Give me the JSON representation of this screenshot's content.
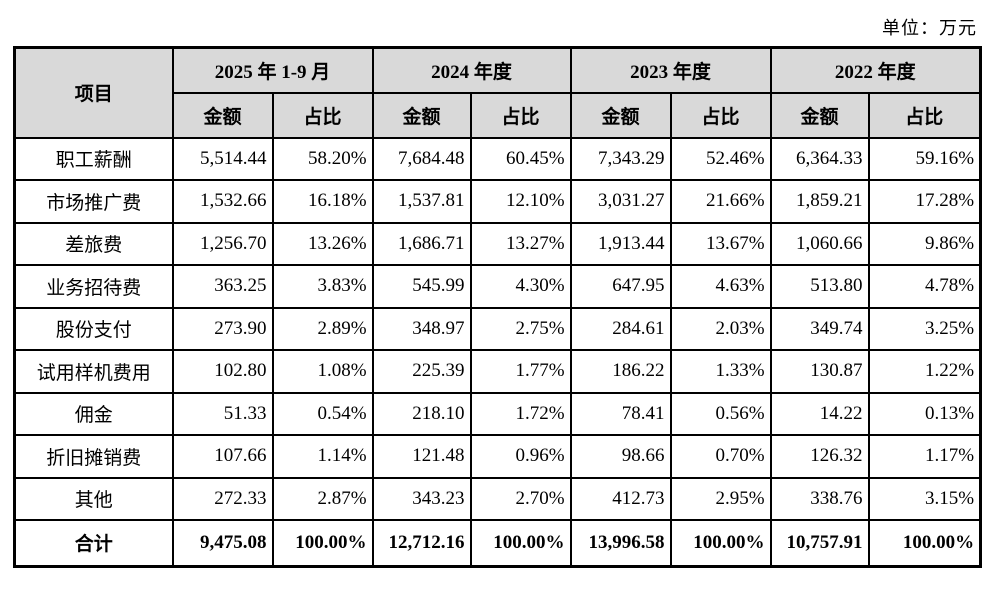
{
  "unit_label": "单位：万元",
  "table": {
    "item_header": "项目",
    "periods": [
      {
        "label": "2025 年 1-9 月",
        "sub": [
          "金额",
          "占比"
        ]
      },
      {
        "label": "2024 年度",
        "sub": [
          "金额",
          "占比"
        ]
      },
      {
        "label": "2023 年度",
        "sub": [
          "金额",
          "占比"
        ]
      },
      {
        "label": "2022 年度",
        "sub": [
          "金额",
          "占比"
        ]
      }
    ],
    "rows": [
      {
        "item": "职工薪酬",
        "values": [
          "5,514.44",
          "58.20%",
          "7,684.48",
          "60.45%",
          "7,343.29",
          "52.46%",
          "6,364.33",
          "59.16%"
        ]
      },
      {
        "item": "市场推广费",
        "values": [
          "1,532.66",
          "16.18%",
          "1,537.81",
          "12.10%",
          "3,031.27",
          "21.66%",
          "1,859.21",
          "17.28%"
        ]
      },
      {
        "item": "差旅费",
        "values": [
          "1,256.70",
          "13.26%",
          "1,686.71",
          "13.27%",
          "1,913.44",
          "13.67%",
          "1,060.66",
          "9.86%"
        ]
      },
      {
        "item": "业务招待费",
        "values": [
          "363.25",
          "3.83%",
          "545.99",
          "4.30%",
          "647.95",
          "4.63%",
          "513.80",
          "4.78%"
        ]
      },
      {
        "item": "股份支付",
        "values": [
          "273.90",
          "2.89%",
          "348.97",
          "2.75%",
          "284.61",
          "2.03%",
          "349.74",
          "3.25%"
        ]
      },
      {
        "item": "试用样机费用",
        "values": [
          "102.80",
          "1.08%",
          "225.39",
          "1.77%",
          "186.22",
          "1.33%",
          "130.87",
          "1.22%"
        ]
      },
      {
        "item": "佣金",
        "values": [
          "51.33",
          "0.54%",
          "218.10",
          "1.72%",
          "78.41",
          "0.56%",
          "14.22",
          "0.13%"
        ]
      },
      {
        "item": "折旧摊销费",
        "values": [
          "107.66",
          "1.14%",
          "121.48",
          "0.96%",
          "98.66",
          "0.70%",
          "126.32",
          "1.17%"
        ]
      },
      {
        "item": "其他",
        "values": [
          "272.33",
          "2.87%",
          "343.23",
          "2.70%",
          "412.73",
          "2.95%",
          "338.76",
          "3.15%"
        ]
      }
    ],
    "total_row": {
      "item": "合计",
      "values": [
        "9,475.08",
        "100.00%",
        "12,712.16",
        "100.00%",
        "13,996.58",
        "100.00%",
        "10,757.91",
        "100.00%"
      ]
    }
  }
}
